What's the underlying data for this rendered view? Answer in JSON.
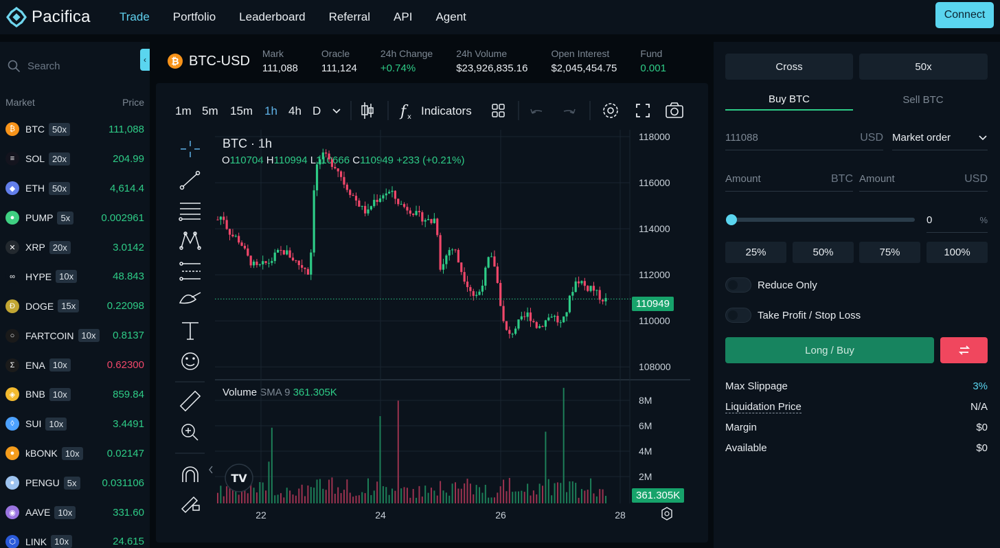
{
  "nav": {
    "brand": "Pacifica",
    "links": [
      "Trade",
      "Portfolio",
      "Leaderboard",
      "Referral",
      "API",
      "Agent"
    ],
    "connect_label": "Connect"
  },
  "markets": {
    "search_placeholder": "Search",
    "header_market": "Market",
    "header_price": "Price",
    "rows": [
      {
        "name": "BTC",
        "lev": "50x",
        "price": "111,088",
        "dir": "up",
        "icon_color": "#f7931a",
        "icon": "₿"
      },
      {
        "name": "SOL",
        "lev": "20x",
        "price": "204.99",
        "dir": "up",
        "icon_color": "#14141e",
        "icon": "≡"
      },
      {
        "name": "ETH",
        "lev": "50x",
        "price": "4,614.4",
        "dir": "up",
        "icon_color": "#627eea",
        "icon": "◆"
      },
      {
        "name": "PUMP",
        "lev": "5x",
        "price": "0.002961",
        "dir": "up",
        "icon_color": "#3fd082",
        "icon": "●"
      },
      {
        "name": "XRP",
        "lev": "20x",
        "price": "3.0142",
        "dir": "up",
        "icon_color": "#23292f",
        "icon": "✕"
      },
      {
        "name": "HYPE",
        "lev": "10x",
        "price": "48.843",
        "dir": "up",
        "icon_color": "#0b131c",
        "icon": "∞"
      },
      {
        "name": "DOGE",
        "lev": "15x",
        "price": "0.22098",
        "dir": "up",
        "icon_color": "#c2a633",
        "icon": "Ð"
      },
      {
        "name": "FARTCOIN",
        "lev": "10x",
        "price": "0.8137",
        "dir": "up",
        "icon_color": "#1a1a1a",
        "icon": "○"
      },
      {
        "name": "ENA",
        "lev": "10x",
        "price": "0.62300",
        "dir": "down",
        "icon_color": "#1b1b1b",
        "icon": "Σ"
      },
      {
        "name": "BNB",
        "lev": "10x",
        "price": "859.84",
        "dir": "up",
        "icon_color": "#f3ba2f",
        "icon": "◈"
      },
      {
        "name": "SUI",
        "lev": "10x",
        "price": "3.4491",
        "dir": "up",
        "icon_color": "#4da2ff",
        "icon": "◊"
      },
      {
        "name": "kBONK",
        "lev": "10x",
        "price": "0.02147",
        "dir": "up",
        "icon_color": "#f49c1c",
        "icon": "●"
      },
      {
        "name": "PENGU",
        "lev": "5x",
        "price": "0.031106",
        "dir": "up",
        "icon_color": "#9dc3f0",
        "icon": "●"
      },
      {
        "name": "AAVE",
        "lev": "10x",
        "price": "331.60",
        "dir": "up",
        "icon_color": "#9a74e0",
        "icon": "◉"
      },
      {
        "name": "LINK",
        "lev": "10x",
        "price": "24.615",
        "dir": "up",
        "icon_color": "#2a5ada",
        "icon": "⬡"
      }
    ]
  },
  "ticker": {
    "pair": "BTC-USD",
    "stats": [
      {
        "label": "Mark",
        "value": "111,088",
        "color": "#e8ecf0"
      },
      {
        "label": "Oracle",
        "value": "111,124",
        "color": "#e8ecf0"
      },
      {
        "label": "24h Change",
        "value": "+0.74%",
        "color": "#2ecc87"
      },
      {
        "label": "24h Volume",
        "value": "$23,926,835.16",
        "color": "#e8ecf0"
      },
      {
        "label": "Open Interest",
        "value": "$2,045,454.75",
        "color": "#e8ecf0"
      },
      {
        "label": "Fund",
        "value": "0.001",
        "color": "#2ecc87"
      }
    ]
  },
  "toolbar": {
    "intervals": [
      "1m",
      "5m",
      "15m",
      "1h",
      "4h",
      "D"
    ],
    "active_interval": "1h",
    "indicators_label": "Indicators"
  },
  "chart": {
    "legend_title": "BTC · 1h",
    "ohlc": {
      "o_label": "O",
      "o": "110704",
      "h_label": "H",
      "h": "110994",
      "l_label": "L",
      "l": "110666",
      "c_label": "C",
      "c": "110949",
      "chg": "+233 (+0.21%)"
    },
    "volume_label": "Volume",
    "volume_sma": "SMA 9",
    "volume_value": "361.305K",
    "last_price_tag": "110949",
    "volume_tag": "361.305K"
  },
  "chart_data": {
    "type": "candlestick",
    "price_axis_ticks": [
      118000,
      116000,
      114000,
      112000,
      110000,
      108000
    ],
    "volume_axis_ticks": [
      "8M",
      "6M",
      "4M",
      "2M"
    ],
    "x_ticks": [
      "22",
      "24",
      "26",
      "28"
    ],
    "last_price": 110949,
    "path_close": [
      114400,
      114600,
      114000,
      113700,
      113600,
      113300,
      112800,
      112500,
      112300,
      112400,
      112500,
      112600,
      112900,
      113000,
      113000,
      112800,
      112600,
      112400,
      112300,
      112000,
      116500,
      117000,
      117200,
      116900,
      116800,
      116500,
      116000,
      115700,
      115400,
      115100,
      114800,
      114700,
      115200,
      115300,
      115500,
      115600,
      115500,
      115200,
      115000,
      114900,
      114800,
      114600,
      114500,
      114400,
      114300,
      114500,
      112100,
      112800,
      113200,
      113000,
      112300,
      111800,
      111400,
      111000,
      111300,
      112000,
      112800,
      112500,
      111200,
      109800,
      109300,
      109600,
      109900,
      110100,
      110300,
      110000,
      109700,
      109900,
      110100,
      110300,
      110000,
      109800,
      110500,
      111300,
      111800,
      111700,
      111400,
      111500,
      111200,
      111000,
      110900
    ]
  },
  "order": {
    "margin_mode": "Cross",
    "leverage": "50x",
    "tab_buy": "Buy BTC",
    "tab_sell": "Sell BTC",
    "price_value": "111088",
    "price_unit": "USD",
    "order_type": "Market order",
    "amount_label": "Amount",
    "amount_unit_btc": "BTC",
    "amount_unit_usd": "USD",
    "slider_value": "0",
    "slider_unit": "%",
    "pct_buttons": [
      "25%",
      "50%",
      "75%",
      "100%"
    ],
    "reduce_only": "Reduce Only",
    "tp_sl": "Take Profit / Stop Loss",
    "submit_label": "Long / Buy",
    "info": [
      {
        "label": "Max Slippage",
        "value": "3%",
        "color": "#5ad5ef"
      },
      {
        "label": "Liquidation Price",
        "value": "N/A",
        "color": "#e8ecf0"
      },
      {
        "label": "Margin",
        "value": "$0",
        "color": "#e8ecf0"
      },
      {
        "label": "Available",
        "value": "$0",
        "color": "#e8ecf0"
      }
    ]
  },
  "colors": {
    "accent": "#5ad5ef",
    "up": "#2ecc87",
    "down": "#f0476a",
    "buy_button": "#17845f"
  }
}
